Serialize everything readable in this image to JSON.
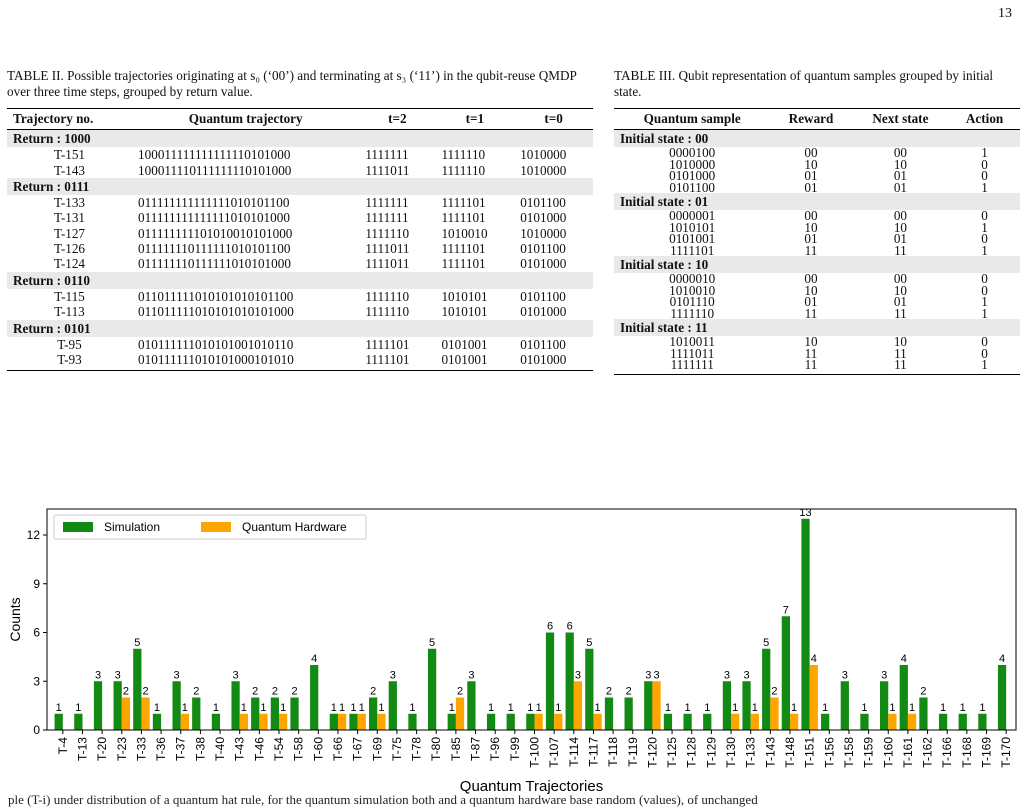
{
  "page_number": "13",
  "table2": {
    "caption": "TABLE II. Possible trajectories originating at s₀ (‘00’) and terminating at s₃ (‘11’) in the qubit-reuse QMDP over three time steps, grouped by return value.",
    "headers": [
      "Trajectory no.",
      "Quantum trajectory",
      "t=2",
      "t=1",
      "t=0"
    ],
    "groups": [
      {
        "label": "Return : 1000",
        "rows": [
          [
            "T-151",
            "100011111111111110101000",
            "1111111",
            "1111110",
            "1010000"
          ],
          [
            "T-143",
            "100011110111111110101000",
            "1111011",
            "1111110",
            "1010000"
          ]
        ]
      },
      {
        "label": "Return : 0111",
        "rows": [
          [
            "T-133",
            "011111111111111010101100",
            "1111111",
            "1111101",
            "0101100"
          ],
          [
            "T-131",
            "011111111111111010101000",
            "1111111",
            "1111101",
            "0101000"
          ],
          [
            "T-127",
            "011111111101010010101000",
            "1111110",
            "1010010",
            "1010000"
          ],
          [
            "T-126",
            "011111110111111010101100",
            "1111011",
            "1111101",
            "0101100"
          ],
          [
            "T-124",
            "011111110111111010101000",
            "1111011",
            "1111101",
            "0101000"
          ]
        ]
      },
      {
        "label": "Return : 0110",
        "rows": [
          [
            "T-115",
            "011011111010101010101100",
            "1111110",
            "1010101",
            "0101100"
          ],
          [
            "T-113",
            "011011111010101010101000",
            "1111110",
            "1010101",
            "0101000"
          ]
        ]
      },
      {
        "label": "Return : 0101",
        "rows": [
          [
            "T-95",
            "010111111010101001010110",
            "1111101",
            "0101001",
            "0101100"
          ],
          [
            "T-93",
            "010111111010101000101010",
            "1111101",
            "0101001",
            "0101000"
          ]
        ]
      }
    ]
  },
  "table3": {
    "caption": "TABLE III. Qubit representation of quantum samples grouped by initial state.",
    "headers": [
      "Quantum sample",
      "Reward",
      "Next state",
      "Action"
    ],
    "groups": [
      {
        "label": "Initial state : 00",
        "rows": [
          [
            "0000100",
            "00",
            "00",
            "1"
          ],
          [
            "1010000",
            "10",
            "10",
            "0"
          ],
          [
            "0101000",
            "01",
            "01",
            "0"
          ],
          [
            "0101100",
            "01",
            "01",
            "1"
          ]
        ]
      },
      {
        "label": "Initial state : 01",
        "rows": [
          [
            "0000001",
            "00",
            "00",
            "0"
          ],
          [
            "1010101",
            "10",
            "10",
            "1"
          ],
          [
            "0101001",
            "01",
            "01",
            "0"
          ],
          [
            "1111101",
            "11",
            "11",
            "1"
          ]
        ]
      },
      {
        "label": "Initial state : 10",
        "rows": [
          [
            "0000010",
            "00",
            "00",
            "0"
          ],
          [
            "1010010",
            "10",
            "10",
            "0"
          ],
          [
            "0101110",
            "01",
            "01",
            "1"
          ],
          [
            "1111110",
            "11",
            "11",
            "1"
          ]
        ]
      },
      {
        "label": "Initial state : 11",
        "rows": [
          [
            "1010011",
            "10",
            "10",
            "0"
          ],
          [
            "1111011",
            "11",
            "11",
            "0"
          ],
          [
            "1111111",
            "11",
            "11",
            "1"
          ]
        ]
      }
    ]
  },
  "chart_data": {
    "type": "bar",
    "xlabel": "Quantum Trajectories",
    "ylabel": "Counts",
    "ylim": [
      0,
      13.6
    ],
    "yticks": [
      0,
      3,
      6,
      9,
      12
    ],
    "legend_position": "top-left",
    "categories": [
      "T-4",
      "T-13",
      "T-20",
      "T-23",
      "T-33",
      "T-36",
      "T-37",
      "T-38",
      "T-40",
      "T-43",
      "T-46",
      "T-54",
      "T-58",
      "T-60",
      "T-66",
      "T-67",
      "T-69",
      "T-75",
      "T-78",
      "T-80",
      "T-85",
      "T-87",
      "T-96",
      "T-99",
      "T-100",
      "T-107",
      "T-114",
      "T-117",
      "T-118",
      "T-119",
      "T-120",
      "T-125",
      "T-128",
      "T-129",
      "T-130",
      "T-133",
      "T-143",
      "T-148",
      "T-151",
      "T-156",
      "T-158",
      "T-159",
      "T-160",
      "T-161",
      "T-162",
      "T-166",
      "T-168",
      "T-169",
      "T-170"
    ],
    "series": [
      {
        "name": "Simulation",
        "color": "#138a13",
        "values": [
          1,
          1,
          3,
          3,
          5,
          1,
          3,
          2,
          1,
          3,
          2,
          2,
          2,
          4,
          1,
          1,
          2,
          3,
          1,
          5,
          1,
          3,
          1,
          1,
          1,
          6,
          6,
          5,
          2,
          2,
          3,
          1,
          1,
          1,
          3,
          3,
          5,
          7,
          13,
          1,
          3,
          1,
          3,
          4,
          2,
          1,
          1,
          1,
          4
        ]
      },
      {
        "name": "Quantum Hardware",
        "color": "#ffa500",
        "values": [
          0,
          0,
          0,
          2,
          2,
          0,
          1,
          0,
          0,
          1,
          1,
          1,
          0,
          0,
          1,
          1,
          1,
          0,
          0,
          0,
          2,
          0,
          0,
          0,
          1,
          1,
          3,
          1,
          0,
          0,
          3,
          0,
          0,
          0,
          1,
          1,
          2,
          1,
          4,
          0,
          0,
          0,
          1,
          1,
          0,
          0,
          0,
          0,
          0
        ]
      }
    ]
  },
  "bottom_text": "ple (T-i) under distribution of a quantum hat rule, for the quantum simulation both and a quantum hardware base random (values), of unchanged"
}
